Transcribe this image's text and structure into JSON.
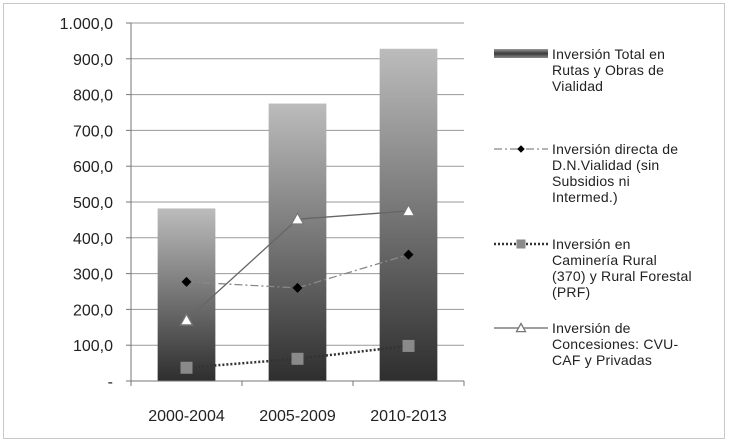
{
  "chart_data": {
    "type": "bar",
    "title": "",
    "xlabel": "",
    "ylabel": "",
    "ylim": [
      0,
      1000
    ],
    "y_ticks": [
      "-",
      "100,0",
      "200,0",
      "300,0",
      "400,0",
      "500,0",
      "600,0",
      "700,0",
      "800,0",
      "900,0",
      "1.000,0"
    ],
    "categories": [
      "2000-2004",
      "2005-2009",
      "2010-2013"
    ],
    "grid": true,
    "legend_position": "right",
    "series": [
      {
        "name": "Inversión Total en Rutas y Obras de Vialidad",
        "legend_lines": [
          "Inversión Total en",
          "Rutas y Obras de",
          "Vialidad"
        ],
        "kind": "bar",
        "values": [
          482,
          775,
          928
        ],
        "color": "#555555"
      },
      {
        "name": "Inversión directa de D.N.Vialidad (sin Subsidios ni Intermed.)",
        "legend_lines": [
          "Inversión directa de",
          "D.N.Vialidad (sin",
          "Subsidios ni",
          "Intermed.)"
        ],
        "kind": "line",
        "marker": "diamond",
        "line_style": "dash-dot",
        "values": [
          277,
          260,
          353
        ],
        "color": "#000000"
      },
      {
        "name": "Inversión en Caminería Rural (370) y Rural Forestal (PRF)",
        "legend_lines": [
          "Inversión en",
          "Caminería Rural",
          "(370) y Rural Forestal",
          "(PRF)"
        ],
        "kind": "line",
        "marker": "square",
        "line_style": "dotted",
        "values": [
          37,
          62,
          98
        ],
        "color": "#000000"
      },
      {
        "name": "Inversión de Concesiones: CVU-CAF y Privadas",
        "legend_lines": [
          "Inversión de",
          "Concesiones: CVU-",
          "CAF y Privadas"
        ],
        "kind": "line",
        "marker": "triangle",
        "line_style": "solid",
        "values": [
          170,
          452,
          475
        ],
        "color": "#666666"
      }
    ]
  }
}
